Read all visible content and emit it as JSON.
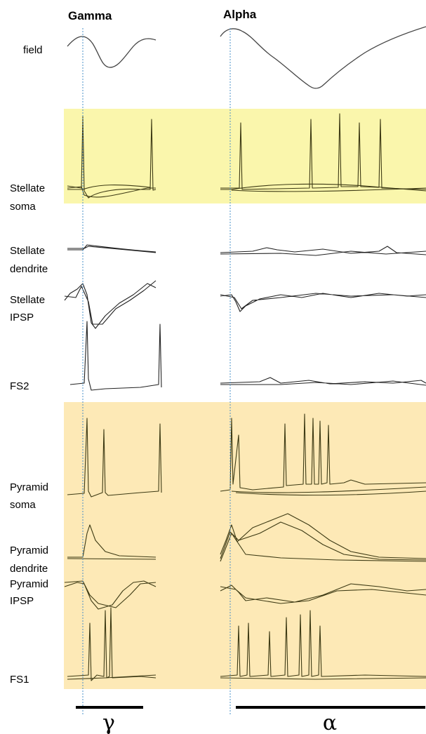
{
  "columns": [
    "Gamma",
    "Alpha"
  ],
  "rows": [
    {
      "label": [
        "field"
      ]
    },
    {
      "label": [
        "Stellate",
        "soma"
      ]
    },
    {
      "label": [
        "Stellate",
        "dendrite"
      ]
    },
    {
      "label": [
        "Stellate",
        "IPSP"
      ]
    },
    {
      "label": [
        "FS2"
      ]
    },
    {
      "label": [
        "Pyramid",
        "soma"
      ]
    },
    {
      "label": [
        "Pyramid",
        "dendrite"
      ]
    },
    {
      "label": [
        "Pyramid",
        "IPSP"
      ]
    },
    {
      "label": [
        "FS1"
      ]
    }
  ],
  "scale_bars": [
    "γ",
    "α"
  ]
}
